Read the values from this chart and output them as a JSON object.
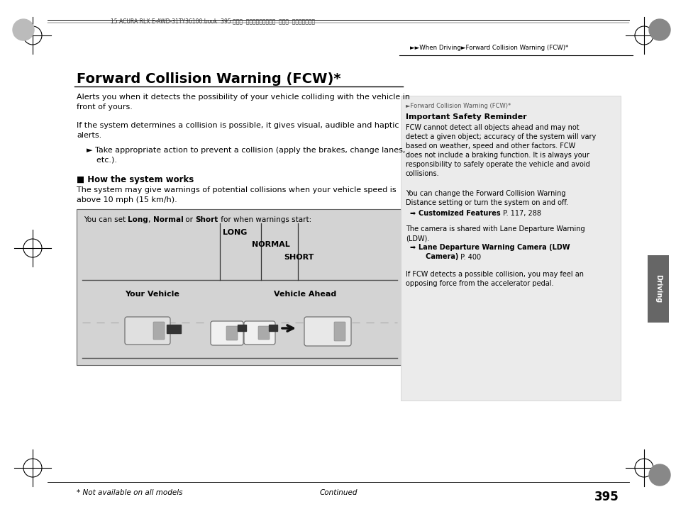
{
  "page_bg": "#ffffff",
  "top_bar_text": "15 ACURA RLX E-AWD-31TY36100.book  395 ページ  ２０１４年８月６日  水曜日  午後１時５９分",
  "breadcrumb": "►►When Driving►Forward Collision Warning (FCW)*",
  "title": "Forward Collision Warning (FCW)*",
  "para1": "Alerts you when it detects the possibility of your vehicle colliding with the vehicle in\nfront of yours.",
  "para2": "If the system determines a collision is possible, it gives visual, audible and haptic\nalerts.",
  "bullet1": "► Take appropriate action to prevent a collision (apply the brakes, change lanes,\n    etc.).",
  "section_head": "■ How the system works",
  "para3": "The system may give warnings of potential collisions when your vehicle speed is\nabove 10 mph (15 km/h).",
  "diag_caption_plain": "You can set ",
  "diag_caption_bold1": "Long",
  "diag_caption_mid1": ", ",
  "diag_caption_bold2": "Normal",
  "diag_caption_mid2": " or ",
  "diag_caption_bold3": "Short",
  "diag_caption_end": " for when warnings start:",
  "label_long": "LONG",
  "label_normal": "NORMAL",
  "label_short": "SHORT",
  "label_your_vehicle": "Your Vehicle",
  "label_vehicle_ahead": "Vehicle Ahead",
  "rp_header": "►Forward Collision Warning (FCW)*",
  "rp_title": "Important Safety Reminder",
  "rp_body1": "FCW cannot detect all objects ahead and may not\ndetect a given object; accuracy of the system will vary\nbased on weather, speed and other factors. FCW\ndoes not include a braking function. It is always your\nresponsibility to safely operate the vehicle and avoid\ncollisions.",
  "rp_body2": "You can change the Forward Collision Warning\nDistance setting or turn the system on and off.",
  "rp_link1_icon": "➡",
  "rp_link1_bold": "Customized Features",
  "rp_link1_plain": " P. 117, 288",
  "rp_body3": "The camera is shared with Lane Departure Warning\n(LDW).",
  "rp_link2_icon": "➡",
  "rp_link2_bold": "Lane Departure Warning Camera (LDW\n   Camera)",
  "rp_link2_plain": " P. 400",
  "rp_body4": "If FCW detects a possible collision, you may feel an\nopposing force from the accelerator pedal.",
  "driving_tab": "Driving",
  "footer_left": "* Not available on all models",
  "footer_center": "Continued",
  "page_number": "395",
  "diagram_bg": "#d3d3d3",
  "road_dark_color": "#555555",
  "road_dash_color": "#aaaaaa",
  "right_panel_bg": "#ebebeb"
}
